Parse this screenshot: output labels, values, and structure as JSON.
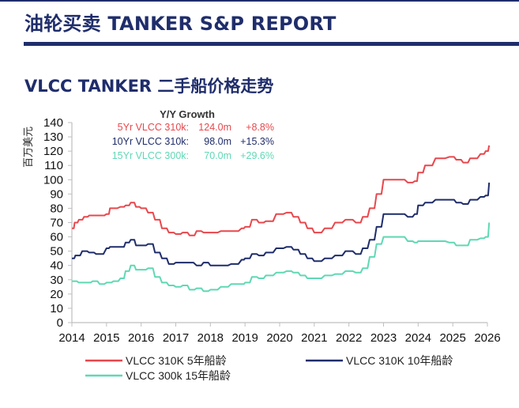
{
  "header": {
    "title": "油轮买卖 TANKER S&P REPORT",
    "accent_color": "#1f2d6b"
  },
  "chart_data": {
    "type": "line",
    "title": "VLCC TANKER 二手船价格走势",
    "ylabel": "百万美元",
    "xlabel": "",
    "xlim": [
      2014,
      2026
    ],
    "ylim": [
      0,
      140
    ],
    "x_ticks": [
      "2014",
      "2015",
      "2016",
      "2017",
      "2018",
      "2019",
      "2020",
      "2021",
      "2022",
      "2023",
      "2024",
      "2025",
      "2026"
    ],
    "y_ticks": [
      "0",
      "10",
      "20",
      "30",
      "40",
      "50",
      "60",
      "70",
      "80",
      "90",
      "100",
      "110",
      "120",
      "130",
      "140"
    ],
    "grid": false,
    "legend_position": "bottom",
    "growth_box": {
      "title": "Y/Y Growth",
      "rows": [
        {
          "name": "5Yr VLCC 310k:",
          "value": "124.0m",
          "growth": "+8.8%",
          "color": "#e8474c"
        },
        {
          "name": "10Yr VLCC 310k:",
          "value": "98.0m",
          "growth": "+15.3%",
          "color": "#1f2d6b"
        },
        {
          "name": "15Yr VLCC 300k:",
          "value": "70.0m",
          "growth": "+29.6%",
          "color": "#5fd8b4"
        }
      ]
    },
    "series": [
      {
        "name": "VLCC 310K 5年船龄",
        "color": "#e8474c",
        "x": [
          2014.0,
          2014.08,
          2014.2,
          2014.35,
          2014.5,
          2014.8,
          2015.0,
          2015.1,
          2015.4,
          2015.55,
          2015.7,
          2015.85,
          2016.0,
          2016.2,
          2016.4,
          2016.6,
          2016.8,
          2017.0,
          2017.2,
          2017.4,
          2017.6,
          2017.8,
          2018.0,
          2018.3,
          2018.6,
          2018.9,
          2019.0,
          2019.2,
          2019.4,
          2019.6,
          2019.9,
          2020.2,
          2020.4,
          2020.6,
          2020.8,
          2021.0,
          2021.3,
          2021.6,
          2021.9,
          2022.2,
          2022.4,
          2022.6,
          2022.8,
          2023.0,
          2023.4,
          2023.7,
          2023.9,
          2024.0,
          2024.2,
          2024.5,
          2024.9,
          2025.1,
          2025.3,
          2025.5,
          2025.8,
          2025.95,
          2026.05
        ],
        "y": [
          66,
          70,
          72,
          74,
          75,
          75,
          76,
          80,
          81,
          82,
          84,
          81,
          80,
          77,
          72,
          66,
          63,
          62,
          63,
          61,
          64,
          63,
          63,
          64,
          64,
          66,
          67,
          72,
          70,
          71,
          76,
          77,
          74,
          70,
          66,
          63,
          66,
          70,
          72,
          70,
          74,
          80,
          90,
          100,
          100,
          98,
          99,
          105,
          110,
          115,
          116,
          114,
          112,
          115,
          118,
          120,
          124
        ]
      },
      {
        "name": "VLCC  310K 10年船龄",
        "color": "#1f2d6b",
        "x": [
          2014.0,
          2014.1,
          2014.3,
          2014.5,
          2014.7,
          2015.0,
          2015.1,
          2015.4,
          2015.55,
          2015.7,
          2015.85,
          2016.0,
          2016.2,
          2016.4,
          2016.6,
          2016.8,
          2017.0,
          2017.3,
          2017.6,
          2017.8,
          2018.0,
          2018.3,
          2018.6,
          2018.9,
          2019.0,
          2019.2,
          2019.4,
          2019.6,
          2019.9,
          2020.2,
          2020.4,
          2020.6,
          2020.8,
          2021.0,
          2021.3,
          2021.6,
          2021.9,
          2022.2,
          2022.4,
          2022.6,
          2022.8,
          2023.0,
          2023.4,
          2023.7,
          2023.9,
          2024.0,
          2024.2,
          2024.5,
          2024.9,
          2025.1,
          2025.3,
          2025.5,
          2025.8,
          2025.95,
          2026.05
        ],
        "y": [
          45,
          47,
          50,
          49,
          48,
          52,
          53,
          53,
          56,
          58,
          54,
          54,
          55,
          49,
          45,
          41,
          42,
          42,
          40,
          42,
          40,
          40,
          41,
          44,
          45,
          48,
          47,
          49,
          52,
          53,
          51,
          48,
          45,
          43,
          45,
          47,
          50,
          48,
          52,
          58,
          67,
          76,
          76,
          74,
          76,
          82,
          84,
          86,
          86,
          84,
          83,
          86,
          88,
          89,
          98
        ]
      },
      {
        "name": "VLCC  300k 15年船龄",
        "color": "#5fd8b4",
        "x": [
          2014.0,
          2014.2,
          2014.4,
          2014.6,
          2014.8,
          2015.0,
          2015.2,
          2015.4,
          2015.55,
          2015.7,
          2015.85,
          2016.0,
          2016.2,
          2016.4,
          2016.6,
          2016.8,
          2017.0,
          2017.2,
          2017.4,
          2017.6,
          2017.8,
          2018.0,
          2018.3,
          2018.6,
          2018.9,
          2019.0,
          2019.2,
          2019.4,
          2019.6,
          2019.9,
          2020.2,
          2020.4,
          2020.6,
          2020.8,
          2021.0,
          2021.3,
          2021.6,
          2021.9,
          2022.2,
          2022.4,
          2022.6,
          2022.8,
          2023.0,
          2023.4,
          2023.7,
          2023.9,
          2024.0,
          2024.2,
          2024.5,
          2024.9,
          2025.1,
          2025.3,
          2025.5,
          2025.8,
          2025.95,
          2026.05
        ],
        "y": [
          29,
          28,
          28,
          29,
          27,
          28,
          29,
          31,
          36,
          40,
          37,
          37,
          38,
          32,
          28,
          26,
          25,
          26,
          23,
          24,
          22,
          23,
          25,
          27,
          27,
          28,
          32,
          31,
          33,
          35,
          36,
          35,
          33,
          31,
          31,
          33,
          34,
          36,
          35,
          38,
          46,
          55,
          60,
          60,
          57,
          56,
          57,
          57,
          57,
          56,
          54,
          54,
          58,
          59,
          60,
          70
        ]
      }
    ]
  }
}
